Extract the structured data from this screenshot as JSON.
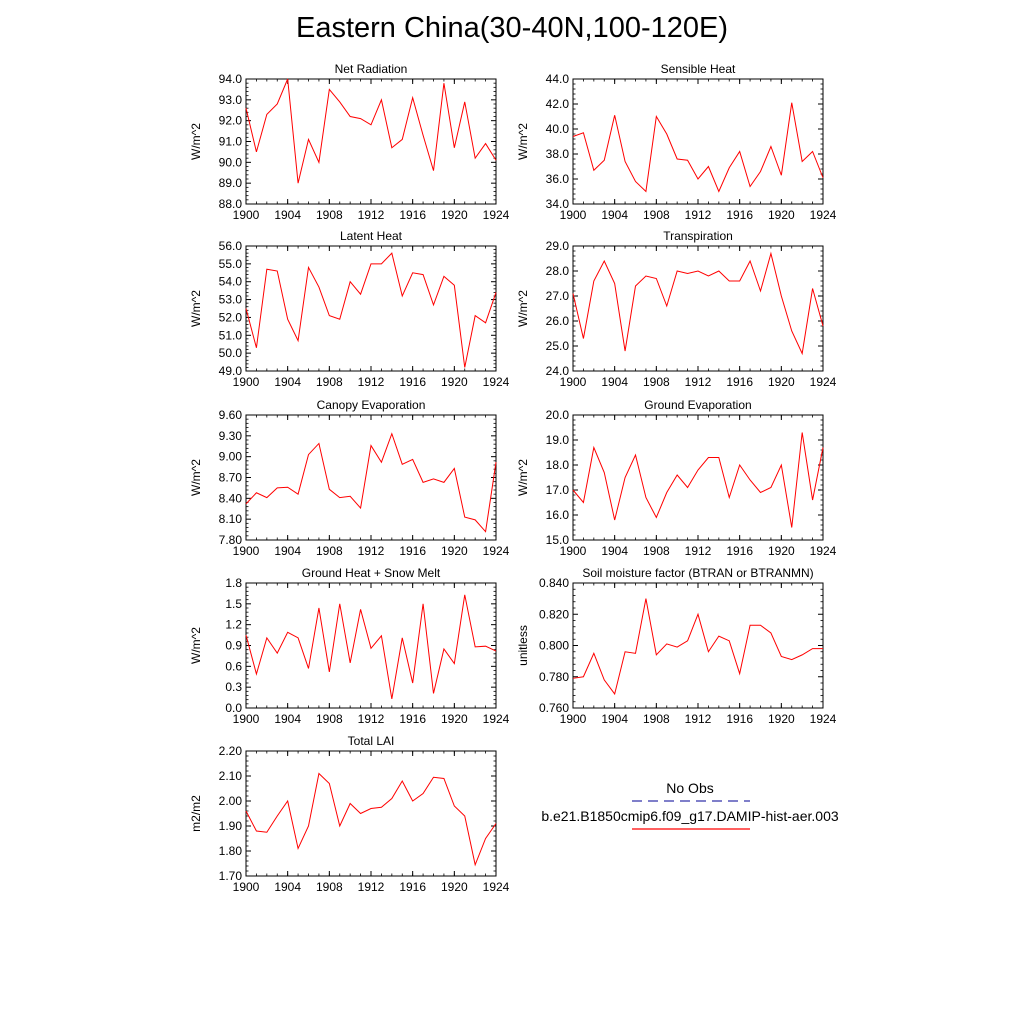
{
  "title": "Eastern China(30-40N,100-120E)",
  "colors": {
    "model_line": "#ff0000",
    "obs_line": "#3333aa",
    "axis": "#000000"
  },
  "legend": {
    "obs_label": "No Obs",
    "model_label": "b.e21.B1850cmip6.f09_g17.DAMIP-hist-aer.003"
  },
  "chart_data": [
    {
      "type": "line",
      "title": "Net Radiation",
      "ylabel": "W/m^2",
      "ylim": [
        88.0,
        94.0
      ],
      "yticks": [
        "88.0",
        "89.0",
        "90.0",
        "91.0",
        "92.0",
        "93.0",
        "94.0"
      ],
      "xlim": [
        1900,
        1924
      ],
      "xticks": [
        "1900",
        "1904",
        "1908",
        "1912",
        "1916",
        "1920",
        "1924"
      ],
      "x": [
        1900,
        1901,
        1902,
        1903,
        1904,
        1905,
        1906,
        1907,
        1908,
        1909,
        1910,
        1911,
        1912,
        1913,
        1914,
        1915,
        1916,
        1917,
        1918,
        1919,
        1920,
        1921,
        1922,
        1923,
        1924
      ],
      "series": [
        {
          "values": [
            92.6,
            90.5,
            92.3,
            92.8,
            94.0,
            89.0,
            91.1,
            90.0,
            93.5,
            92.9,
            92.2,
            92.1,
            91.8,
            93.0,
            90.7,
            91.1,
            93.1,
            91.3,
            89.6,
            93.8,
            90.7,
            92.9,
            90.2,
            90.9,
            90.1
          ]
        }
      ]
    },
    {
      "type": "line",
      "title": "Sensible Heat",
      "ylabel": "W/m^2",
      "ylim": [
        34.0,
        44.0
      ],
      "yticks": [
        "34.0",
        "36.0",
        "38.0",
        "40.0",
        "42.0",
        "44.0"
      ],
      "xlim": [
        1900,
        1924
      ],
      "xticks": [
        "1900",
        "1904",
        "1908",
        "1912",
        "1916",
        "1920",
        "1924"
      ],
      "x": [
        1900,
        1901,
        1902,
        1903,
        1904,
        1905,
        1906,
        1907,
        1908,
        1909,
        1910,
        1911,
        1912,
        1913,
        1914,
        1915,
        1916,
        1917,
        1918,
        1919,
        1920,
        1921,
        1922,
        1923,
        1924
      ],
      "series": [
        {
          "values": [
            39.4,
            39.7,
            36.7,
            37.5,
            41.1,
            37.4,
            35.8,
            35.0,
            41.0,
            39.6,
            37.6,
            37.5,
            36.0,
            37.0,
            35.0,
            36.9,
            38.2,
            35.4,
            36.6,
            38.6,
            36.3,
            42.1,
            37.4,
            38.2,
            36.1
          ]
        }
      ]
    },
    {
      "type": "line",
      "title": "Latent Heat",
      "ylabel": "W/m^2",
      "ylim": [
        49.0,
        56.0
      ],
      "yticks": [
        "49.0",
        "50.0",
        "51.0",
        "52.0",
        "53.0",
        "54.0",
        "55.0",
        "56.0"
      ],
      "xlim": [
        1900,
        1924
      ],
      "xticks": [
        "1900",
        "1904",
        "1908",
        "1912",
        "1916",
        "1920",
        "1924"
      ],
      "x": [
        1900,
        1901,
        1902,
        1903,
        1904,
        1905,
        1906,
        1907,
        1908,
        1909,
        1910,
        1911,
        1912,
        1913,
        1914,
        1915,
        1916,
        1917,
        1918,
        1919,
        1920,
        1921,
        1922,
        1923,
        1924
      ],
      "series": [
        {
          "values": [
            52.5,
            50.3,
            54.7,
            54.6,
            51.9,
            50.7,
            54.8,
            53.7,
            52.1,
            51.9,
            54.0,
            53.3,
            55.0,
            55.0,
            55.6,
            53.2,
            54.5,
            54.4,
            52.7,
            54.3,
            53.8,
            49.2,
            52.1,
            51.7,
            53.4
          ]
        }
      ]
    },
    {
      "type": "line",
      "title": "Transpiration",
      "ylabel": "W/m^2",
      "ylim": [
        24.0,
        29.0
      ],
      "yticks": [
        "24.0",
        "25.0",
        "26.0",
        "27.0",
        "28.0",
        "29.0"
      ],
      "xlim": [
        1900,
        1924
      ],
      "xticks": [
        "1900",
        "1904",
        "1908",
        "1912",
        "1916",
        "1920",
        "1924"
      ],
      "x": [
        1900,
        1901,
        1902,
        1903,
        1904,
        1905,
        1906,
        1907,
        1908,
        1909,
        1910,
        1911,
        1912,
        1913,
        1914,
        1915,
        1916,
        1917,
        1918,
        1919,
        1920,
        1921,
        1922,
        1923,
        1924
      ],
      "series": [
        {
          "values": [
            27.1,
            25.3,
            27.6,
            28.4,
            27.5,
            24.8,
            27.4,
            27.8,
            27.7,
            26.6,
            28.0,
            27.9,
            28.0,
            27.8,
            28.0,
            27.6,
            27.6,
            28.4,
            27.2,
            28.7,
            27.0,
            25.6,
            24.7,
            27.3,
            25.8
          ]
        }
      ]
    },
    {
      "type": "line",
      "title": "Canopy Evaporation",
      "ylabel": "W/m^2",
      "ylim": [
        7.8,
        9.6
      ],
      "yticks": [
        "7.80",
        "8.10",
        "8.40",
        "8.70",
        "9.00",
        "9.30",
        "9.60"
      ],
      "xlim": [
        1900,
        1924
      ],
      "xticks": [
        "1900",
        "1904",
        "1908",
        "1912",
        "1916",
        "1920",
        "1924"
      ],
      "x": [
        1900,
        1901,
        1902,
        1903,
        1904,
        1905,
        1906,
        1907,
        1908,
        1909,
        1910,
        1911,
        1912,
        1913,
        1914,
        1915,
        1916,
        1917,
        1918,
        1919,
        1920,
        1921,
        1922,
        1923,
        1924
      ],
      "series": [
        {
          "values": [
            8.32,
            8.48,
            8.41,
            8.55,
            8.56,
            8.46,
            9.03,
            9.19,
            8.53,
            8.41,
            8.43,
            8.26,
            9.16,
            8.92,
            9.33,
            8.89,
            8.96,
            8.63,
            8.68,
            8.63,
            8.83,
            8.13,
            8.09,
            7.92,
            8.92
          ]
        }
      ]
    },
    {
      "type": "line",
      "title": "Ground Evaporation",
      "ylabel": "W/m^2",
      "ylim": [
        15.0,
        20.0
      ],
      "yticks": [
        "15.0",
        "16.0",
        "17.0",
        "18.0",
        "19.0",
        "20.0"
      ],
      "xlim": [
        1900,
        1924
      ],
      "xticks": [
        "1900",
        "1904",
        "1908",
        "1912",
        "1916",
        "1920",
        "1924"
      ],
      "x": [
        1900,
        1901,
        1902,
        1903,
        1904,
        1905,
        1906,
        1907,
        1908,
        1909,
        1910,
        1911,
        1912,
        1913,
        1914,
        1915,
        1916,
        1917,
        1918,
        1919,
        1920,
        1921,
        1922,
        1923,
        1924
      ],
      "series": [
        {
          "values": [
            17.0,
            16.5,
            18.7,
            17.7,
            15.8,
            17.5,
            18.4,
            16.7,
            15.9,
            16.9,
            17.6,
            17.1,
            17.8,
            18.3,
            18.3,
            16.7,
            18.0,
            17.4,
            16.9,
            17.1,
            18.0,
            15.5,
            19.3,
            16.6,
            18.7
          ]
        }
      ]
    },
    {
      "type": "line",
      "title": "Ground Heat + Snow Melt",
      "ylabel": "W/m^2",
      "ylim": [
        0.0,
        1.8
      ],
      "yticks": [
        "0.0",
        "0.3",
        "0.6",
        "0.9",
        "1.2",
        "1.5",
        "1.8"
      ],
      "xlim": [
        1900,
        1924
      ],
      "xticks": [
        "1900",
        "1904",
        "1908",
        "1912",
        "1916",
        "1920",
        "1924"
      ],
      "x": [
        1900,
        1901,
        1902,
        1903,
        1904,
        1905,
        1906,
        1907,
        1908,
        1909,
        1910,
        1911,
        1912,
        1913,
        1914,
        1915,
        1916,
        1917,
        1918,
        1919,
        1920,
        1921,
        1922,
        1923,
        1924
      ],
      "series": [
        {
          "values": [
            1.05,
            0.49,
            1.01,
            0.79,
            1.09,
            1.01,
            0.57,
            1.44,
            0.52,
            1.5,
            0.65,
            1.42,
            0.86,
            1.04,
            0.13,
            1.01,
            0.36,
            1.5,
            0.21,
            0.85,
            0.64,
            1.63,
            0.88,
            0.89,
            0.82
          ]
        }
      ]
    },
    {
      "type": "line",
      "title": "Soil moisture factor (BTRAN or BTRANMN)",
      "ylabel": "unitless",
      "ylim": [
        0.76,
        0.84
      ],
      "yticks": [
        "0.760",
        "0.780",
        "0.800",
        "0.820",
        "0.840"
      ],
      "xlim": [
        1900,
        1924
      ],
      "xticks": [
        "1900",
        "1904",
        "1908",
        "1912",
        "1916",
        "1920",
        "1924"
      ],
      "x": [
        1900,
        1901,
        1902,
        1903,
        1904,
        1905,
        1906,
        1907,
        1908,
        1909,
        1910,
        1911,
        1912,
        1913,
        1914,
        1915,
        1916,
        1917,
        1918,
        1919,
        1920,
        1921,
        1922,
        1923,
        1924
      ],
      "series": [
        {
          "values": [
            0.779,
            0.78,
            0.795,
            0.778,
            0.769,
            0.796,
            0.795,
            0.83,
            0.794,
            0.801,
            0.799,
            0.803,
            0.82,
            0.796,
            0.806,
            0.803,
            0.782,
            0.813,
            0.813,
            0.808,
            0.793,
            0.791,
            0.794,
            0.798,
            0.798
          ]
        }
      ]
    },
    {
      "type": "line",
      "title": "Total LAI",
      "ylabel": "m2/m2",
      "ylim": [
        1.7,
        2.2
      ],
      "yticks": [
        "1.70",
        "1.80",
        "1.90",
        "2.00",
        "2.10",
        "2.20"
      ],
      "xlim": [
        1900,
        1924
      ],
      "xticks": [
        "1900",
        "1904",
        "1908",
        "1912",
        "1916",
        "1920",
        "1924"
      ],
      "x": [
        1900,
        1901,
        1902,
        1903,
        1904,
        1905,
        1906,
        1907,
        1908,
        1909,
        1910,
        1911,
        1912,
        1913,
        1914,
        1915,
        1916,
        1917,
        1918,
        1919,
        1920,
        1921,
        1922,
        1923,
        1924
      ],
      "series": [
        {
          "values": [
            1.96,
            1.88,
            1.875,
            1.94,
            2.0,
            1.81,
            1.9,
            2.11,
            2.07,
            1.9,
            1.99,
            1.95,
            1.97,
            1.975,
            2.01,
            2.08,
            2.0,
            2.03,
            2.095,
            2.09,
            1.98,
            1.94,
            1.745,
            1.85,
            1.91
          ]
        }
      ]
    }
  ]
}
